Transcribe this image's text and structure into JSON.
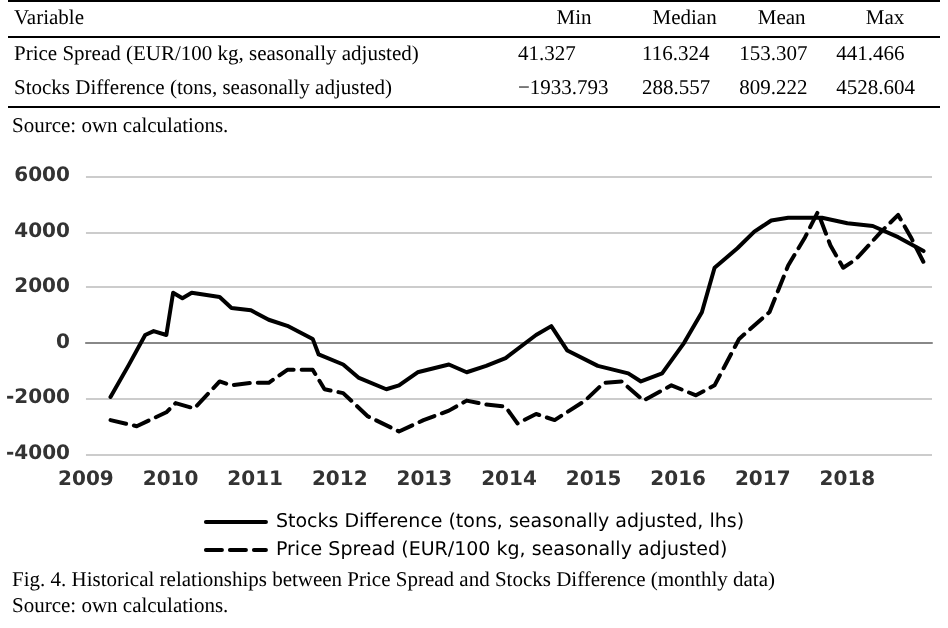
{
  "chart_data": [
    {
      "type": "other",
      "annotations": [
        "Variable",
        "Min",
        "Median",
        "Mean",
        "Max",
        "Price Spread (EUR/100 kg, seasonally adjusted)",
        "41.327",
        "116.324",
        "153.307",
        "441.466",
        "Stocks Difference (tons, seasonally adjusted)",
        "−1933.793",
        "288.557",
        "809.222",
        "4528.604",
        "Source: own calculations."
      ]
    },
    {
      "type": "line",
      "title": "Fig. 4. Historical relationships between Price Spread and Stocks Difference (monthly data)",
      "annotations": [
        "Source: own calculations."
      ],
      "xlim": [
        2009,
        2019
      ],
      "xticks": [
        2009,
        2010,
        2011,
        2012,
        2013,
        2014,
        2015,
        2016,
        2017,
        2018
      ],
      "ylim": [
        -4000,
        6000
      ],
      "yticks": [
        -4000,
        -2000,
        0,
        2000,
        4000,
        6000
      ],
      "grid": "y",
      "legend": "bottom",
      "marker": "none",
      "series": [
        {
          "name": "Stocks Difference (tons, seasonally adjusted, lhs)",
          "color": "#000000",
          "line_style": "solid",
          "x": [
            2009.29,
            2009.5,
            2009.7,
            2009.8,
            2009.95,
            2010.03,
            2010.14,
            2010.25,
            2010.58,
            2010.72,
            2010.95,
            2011.16,
            2011.38,
            2011.68,
            2011.75,
            2012.04,
            2012.22,
            2012.55,
            2012.7,
            2012.92,
            2013.29,
            2013.5,
            2013.73,
            2013.96,
            2014.32,
            2014.5,
            2014.69,
            2015.05,
            2015.41,
            2015.56,
            2015.81,
            2016.07,
            2016.28,
            2016.43,
            2016.7,
            2016.9,
            2017.1,
            2017.3,
            2017.7,
            2018.0,
            2018.3,
            2018.6,
            2018.9
          ],
          "values": [
            -1950,
            -830,
            280,
            420,
            280,
            1800,
            1600,
            1800,
            1650,
            1250,
            1170,
            830,
            610,
            140,
            -420,
            -780,
            -1250,
            -1670,
            -1530,
            -1060,
            -780,
            -1060,
            -830,
            -550,
            280,
            600,
            -280,
            -830,
            -1100,
            -1390,
            -1100,
            0,
            1100,
            2700,
            3400,
            4000,
            4400,
            4500,
            4500,
            4300,
            4200,
            3800,
            3300
          ]
        },
        {
          "name": "Price Spread (EUR/100 kg, seasonally adjusted)",
          "color": "#000000",
          "line_style": "dashed",
          "x": [
            2009.29,
            2009.6,
            2009.95,
            2010.06,
            2010.28,
            2010.58,
            2010.72,
            2010.95,
            2011.16,
            2011.38,
            2011.68,
            2011.82,
            2012.04,
            2012.33,
            2012.7,
            2012.99,
            2013.29,
            2013.5,
            2013.73,
            2013.96,
            2014.1,
            2014.32,
            2014.54,
            2014.9,
            2015.12,
            2015.33,
            2015.59,
            2015.92,
            2016.21,
            2016.43,
            2016.72,
            2017.08,
            2017.3,
            2017.5,
            2017.65,
            2017.8,
            2017.95,
            2018.1,
            2018.4,
            2018.6,
            2018.75,
            2018.9
          ],
          "values": [
            -2780,
            -3000,
            -2500,
            -2170,
            -2360,
            -1390,
            -1530,
            -1440,
            -1440,
            -970,
            -970,
            -1670,
            -1810,
            -2640,
            -3190,
            -2780,
            -2440,
            -2080,
            -2220,
            -2300,
            -2900,
            -2560,
            -2780,
            -2080,
            -1440,
            -1390,
            -2080,
            -1530,
            -1890,
            -1530,
            140,
            1110,
            2780,
            3800,
            4700,
            3500,
            2700,
            3000,
            4000,
            4600,
            3800,
            2900
          ]
        }
      ]
    }
  ]
}
